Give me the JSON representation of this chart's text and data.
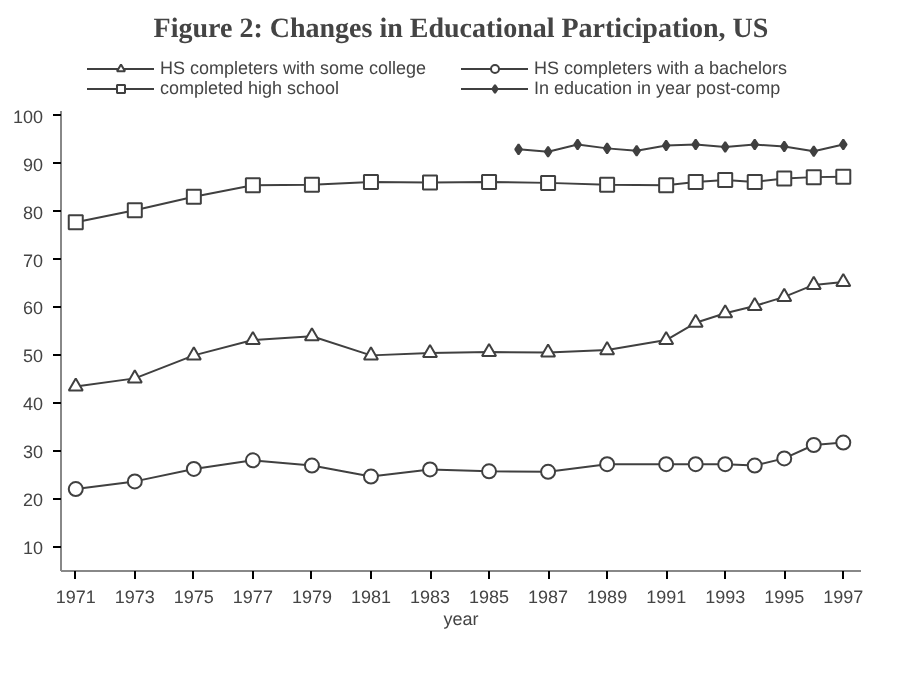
{
  "chart_data": {
    "type": "line",
    "title": "Figure 2: Changes in Educational Participation, US",
    "xlabel": "year",
    "xlim": [
      1970.5,
      1997.6
    ],
    "xticks": [
      1971,
      1973,
      1975,
      1977,
      1979,
      1981,
      1983,
      1985,
      1987,
      1989,
      1991,
      1993,
      1995,
      1997
    ],
    "ylim": [
      5,
      101
    ],
    "yticks": [
      10,
      20,
      30,
      40,
      50,
      60,
      70,
      80,
      90,
      100
    ],
    "grid": false,
    "legend": "top",
    "line_style": "solid",
    "series": [
      {
        "name": "HS completers with some college",
        "color": "#404040",
        "marker": "triangle",
        "x": [
          1971,
          1973,
          1975,
          1977,
          1979,
          1981,
          1983,
          1985,
          1987,
          1989,
          1991,
          1992,
          1993,
          1994,
          1995,
          1996,
          1997
        ],
        "values": [
          43.5,
          45.2,
          50.0,
          53.2,
          54.0,
          50.0,
          50.5,
          50.7,
          50.6,
          51.1,
          53.2,
          56.8,
          58.8,
          60.3,
          62.2,
          64.7,
          65.3
        ]
      },
      {
        "name": "HS completers with a bachelors",
        "color": "#404040",
        "marker": "circle",
        "x": [
          1971,
          1973,
          1975,
          1977,
          1979,
          1981,
          1983,
          1985,
          1987,
          1989,
          1991,
          1992,
          1993,
          1994,
          1995,
          1996,
          1997
        ],
        "values": [
          22.1,
          23.7,
          26.3,
          28.1,
          27.0,
          24.7,
          26.2,
          25.8,
          25.7,
          27.3,
          27.3,
          27.3,
          27.3,
          27.0,
          28.5,
          31.3,
          31.8
        ]
      },
      {
        "name": "completed high school",
        "color": "#404040",
        "marker": "square",
        "x": [
          1971,
          1973,
          1975,
          1977,
          1979,
          1981,
          1983,
          1985,
          1987,
          1989,
          1991,
          1992,
          1993,
          1994,
          1995,
          1996,
          1997
        ],
        "values": [
          77.8,
          80.3,
          83.1,
          85.5,
          85.6,
          86.2,
          86.1,
          86.2,
          86.0,
          85.6,
          85.5,
          86.2,
          86.6,
          86.2,
          86.9,
          87.2,
          87.3
        ]
      },
      {
        "name": "In education in year post-comp",
        "color": "#404040",
        "marker": "diamond",
        "x": [
          1986,
          1987,
          1988,
          1989,
          1990,
          1991,
          1992,
          1993,
          1994,
          1995,
          1996,
          1997
        ],
        "values": [
          93.0,
          92.5,
          94.0,
          93.2,
          92.7,
          93.8,
          94.0,
          93.5,
          94.0,
          93.6,
          92.6,
          94.0
        ]
      }
    ]
  }
}
